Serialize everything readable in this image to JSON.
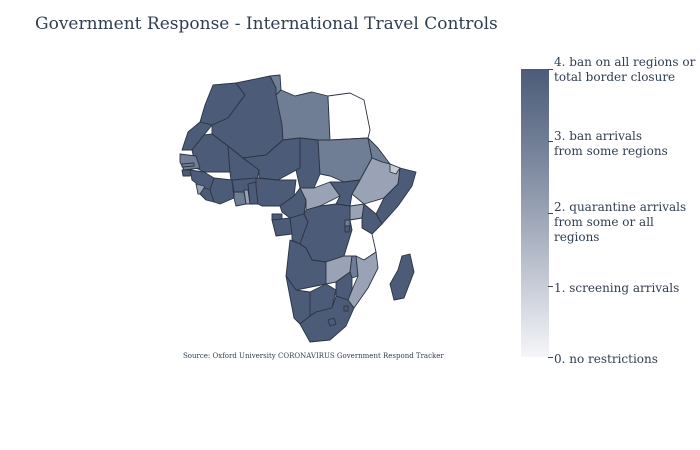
{
  "title": "Government Response - International Travel Controls",
  "source": "Source:  Oxford University CORONAVIRUS Government Respond Tracker",
  "colorbar": {
    "labels": [
      "4. ban on all regions or\ntotal border closure",
      "3. ban arrivals\n from some regions",
      "2. quarantine arrivals\nfrom some or all regions",
      "1. screening arrivals",
      "0. no restrictions"
    ],
    "colors": [
      "#4c5b78",
      "#6f7d95",
      "#9aa3b5",
      "#c8ccd7",
      "#ffffff"
    ]
  },
  "regions": [
    {
      "name": "Morocco",
      "level": 4
    },
    {
      "name": "Western Sahara",
      "level": 4
    },
    {
      "name": "Algeria",
      "level": 4
    },
    {
      "name": "Tunisia",
      "level": 3
    },
    {
      "name": "Libya",
      "level": 3
    },
    {
      "name": "Egypt",
      "level": 0
    },
    {
      "name": "Mauritania",
      "level": 4
    },
    {
      "name": "Mali",
      "level": 4
    },
    {
      "name": "Niger",
      "level": 4
    },
    {
      "name": "Chad",
      "level": 4
    },
    {
      "name": "Sudan",
      "level": 3
    },
    {
      "name": "Eritrea",
      "level": 3
    },
    {
      "name": "Ethiopia",
      "level": 2
    },
    {
      "name": "Djibouti",
      "level": 1
    },
    {
      "name": "Somalia",
      "level": 4
    },
    {
      "name": "Senegal",
      "level": 3
    },
    {
      "name": "Gambia",
      "level": 3
    },
    {
      "name": "Guinea-Bissau",
      "level": 4
    },
    {
      "name": "Guinea",
      "level": 4
    },
    {
      "name": "Sierra Leone",
      "level": 2
    },
    {
      "name": "Liberia",
      "level": 4
    },
    {
      "name": "Cote d'Ivoire",
      "level": 4
    },
    {
      "name": "Burkina Faso",
      "level": 4
    },
    {
      "name": "Ghana",
      "level": 3
    },
    {
      "name": "Togo",
      "level": 2
    },
    {
      "name": "Benin",
      "level": 4
    },
    {
      "name": "Nigeria",
      "level": 4
    },
    {
      "name": "Cameroon",
      "level": 4
    },
    {
      "name": "Central African Republic",
      "level": 2
    },
    {
      "name": "South Sudan",
      "level": 4
    },
    {
      "name": "Uganda",
      "level": 2
    },
    {
      "name": "Kenya",
      "level": 4
    },
    {
      "name": "Equatorial Guinea",
      "level": 4
    },
    {
      "name": "Gabon",
      "level": 4
    },
    {
      "name": "Congo",
      "level": 4
    },
    {
      "name": "Democratic Republic of the Congo",
      "level": 4
    },
    {
      "name": "Rwanda",
      "level": 3
    },
    {
      "name": "Burundi",
      "level": 4
    },
    {
      "name": "Tanzania",
      "level": 0
    },
    {
      "name": "Angola",
      "level": 4
    },
    {
      "name": "Zambia",
      "level": 2
    },
    {
      "name": "Malawi",
      "level": 3
    },
    {
      "name": "Mozambique",
      "level": 2
    },
    {
      "name": "Namibia",
      "level": 4
    },
    {
      "name": "Botswana",
      "level": 4
    },
    {
      "name": "Zimbabwe",
      "level": 4
    },
    {
      "name": "South Africa",
      "level": 4
    },
    {
      "name": "Lesotho",
      "level": 4
    },
    {
      "name": "Eswatini",
      "level": 4
    },
    {
      "name": "Madagascar",
      "level": 4
    }
  ]
}
